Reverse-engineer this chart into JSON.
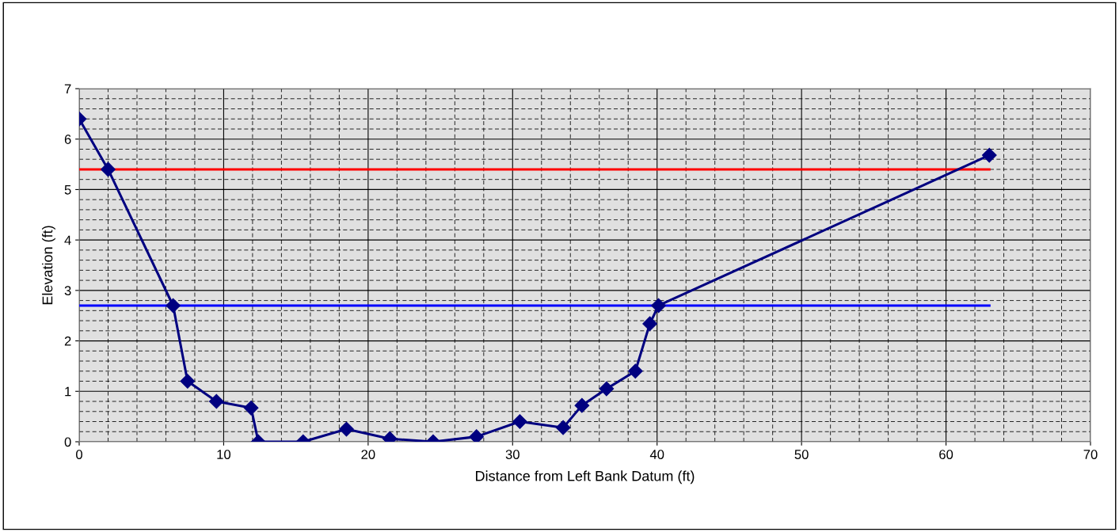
{
  "chart_data": {
    "type": "line",
    "xlabel": "Distance from Left Bank Datum (ft)",
    "ylabel": "Elevation (ft)",
    "xlim": [
      0,
      70
    ],
    "xticks": [
      0,
      10,
      20,
      30,
      40,
      50,
      60,
      70
    ],
    "ylim": [
      0,
      7
    ],
    "yticks": [
      0,
      1,
      2,
      3,
      4,
      5,
      6,
      7
    ],
    "grid": true,
    "legend": false,
    "series": [
      {
        "color": "#ff0000",
        "marker": "none",
        "x": [
          0,
          63
        ],
        "values": [
          5.4,
          5.4
        ]
      },
      {
        "color": "#0000ff",
        "marker": "none",
        "x": [
          0,
          63
        ],
        "values": [
          2.7,
          2.7
        ]
      },
      {
        "color": "#000080",
        "marker": "diamond",
        "x": [
          0,
          2,
          6.5,
          7.5,
          9.5,
          11.9,
          12.4,
          15.5,
          18.5,
          21.5,
          24.5,
          27.5,
          30.5,
          33.5,
          34.8,
          36.5,
          38.5,
          39.5,
          40.1,
          63
        ],
        "values": [
          6.4,
          5.4,
          2.7,
          1.2,
          0.8,
          0.67,
          0,
          0,
          0.25,
          0.06,
          0,
          0.1,
          0.4,
          0.28,
          0.72,
          1.05,
          1.4,
          2.34,
          2.7,
          5.68
        ]
      }
    ]
  }
}
